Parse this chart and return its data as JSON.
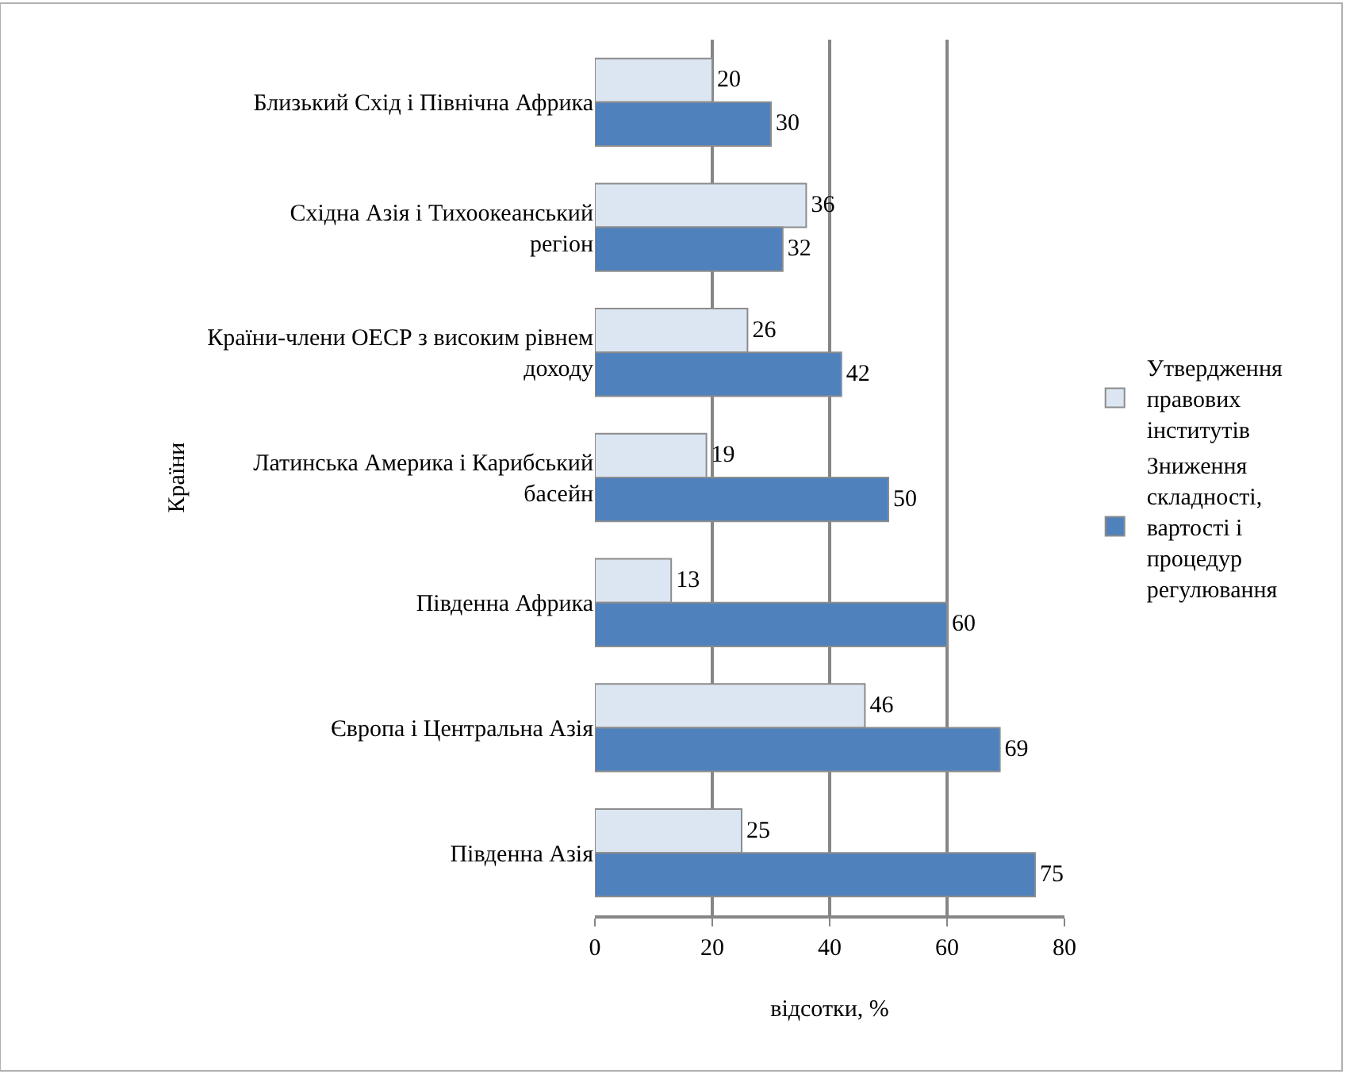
{
  "chart_data": {
    "type": "bar",
    "orientation": "horizontal",
    "xlabel": "відсотки, %",
    "ylabel": "Країни",
    "categories": [
      "Близький Схід і Північна Африка",
      "Східна Азія і Тихоокеанський регіон",
      "Країни-члени ОЕСР з високим рівнем доходу",
      "Латинська Америка і Карибський басейн",
      "Південна Африка",
      "Європа і Центральна Азія",
      "Південна Азія"
    ],
    "series": [
      {
        "name": "Утвердження правових інститутів",
        "color": "#dce6f2",
        "values": [
          20,
          36,
          26,
          19,
          13,
          46,
          25
        ]
      },
      {
        "name": "Зниження складності, вартості і процедур регулювання",
        "color": "#4f81bd",
        "values": [
          30,
          32,
          42,
          50,
          60,
          69,
          75
        ]
      }
    ],
    "xlim": [
      0,
      80
    ],
    "xticks": [
      0,
      20,
      40,
      60,
      80
    ],
    "grid": "x",
    "legend": "right",
    "data_labels": true
  }
}
